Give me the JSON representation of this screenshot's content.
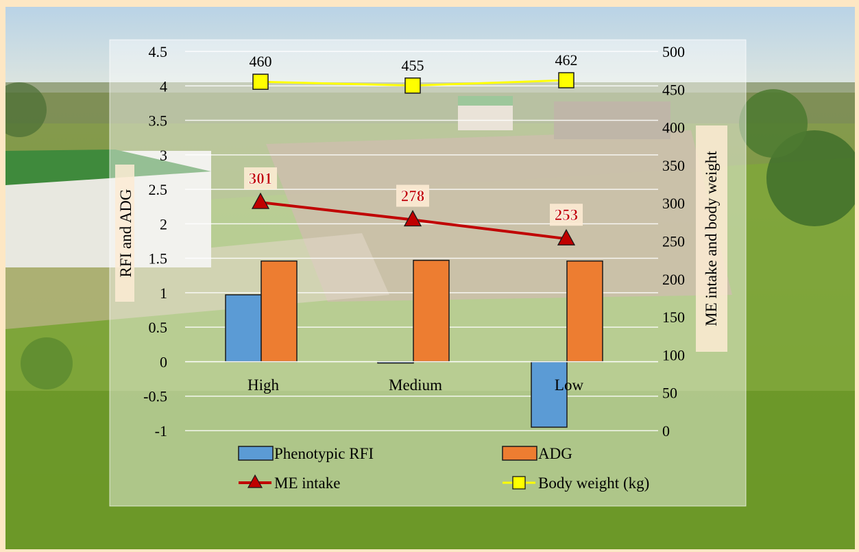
{
  "chart_data": {
    "type": "bar",
    "categories": [
      "High",
      "Medium",
      "Low"
    ],
    "left_axis": {
      "label": "RFI and ADG",
      "ylim": [
        -1,
        4.5
      ],
      "ticks": [
        "4.5",
        "4",
        "3.5",
        "3",
        "2.5",
        "2",
        "1.5",
        "1",
        "0.5",
        "0",
        "-0.5",
        "-1"
      ]
    },
    "right_axis": {
      "label": "ME intake and body weight",
      "ylim": [
        0,
        500
      ],
      "ticks": [
        "500",
        "450",
        "400",
        "350",
        "300",
        "250",
        "200",
        "150",
        "100",
        "50",
        "0"
      ]
    },
    "series": [
      {
        "name": "Phenotypic RFI",
        "kind": "bar",
        "axis": "left",
        "color": "#5b9bd5",
        "values": [
          0.97,
          -0.02,
          -0.95
        ]
      },
      {
        "name": "ADG",
        "kind": "bar",
        "axis": "left",
        "color": "#ed7d31",
        "values": [
          1.46,
          1.47,
          1.46
        ]
      },
      {
        "name": "ME intake",
        "kind": "line",
        "axis": "right",
        "color": "#c00000",
        "marker": "triangle",
        "values": [
          301,
          278,
          253
        ],
        "labels": [
          "301",
          "278",
          "253"
        ]
      },
      {
        "name": "Body weight (kg)",
        "kind": "line",
        "axis": "right",
        "color": "#ffff00",
        "marker": "square",
        "values": [
          460,
          455,
          462
        ],
        "labels": [
          "460",
          "455",
          "462"
        ]
      }
    ],
    "grid": true,
    "legend": "bottom"
  }
}
